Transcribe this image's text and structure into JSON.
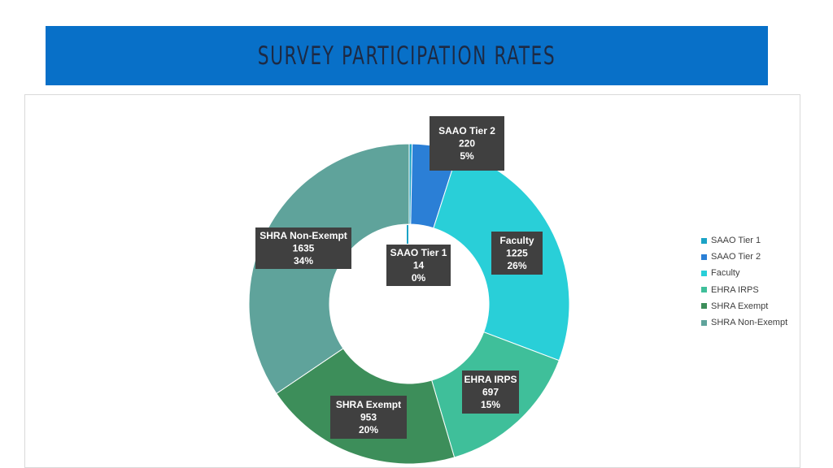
{
  "title": "SURVEY PARTICIPATION RATES",
  "chart_data": {
    "type": "pie",
    "donut": true,
    "title": "",
    "slices": [
      {
        "name": "SAAO Tier 1",
        "value": 14,
        "percent": "0%",
        "color": "#1ba3c6"
      },
      {
        "name": "SAAO Tier 2",
        "value": 220,
        "percent": "5%",
        "color": "#2b7fd6"
      },
      {
        "name": "Faculty",
        "value": 1225,
        "percent": "26%",
        "color": "#29cfd8"
      },
      {
        "name": "EHRA IRPS",
        "value": 697,
        "percent": "15%",
        "color": "#3fbf9a"
      },
      {
        "name": "SHRA Exempt",
        "value": 953,
        "percent": "20%",
        "color": "#3d8e5a"
      },
      {
        "name": "SHRA Non-Exempt",
        "value": 1635,
        "percent": "34%",
        "color": "#5fa39b"
      }
    ],
    "legend_position": "right",
    "label_color": "#404040",
    "label_text_color": "#ffffff"
  }
}
